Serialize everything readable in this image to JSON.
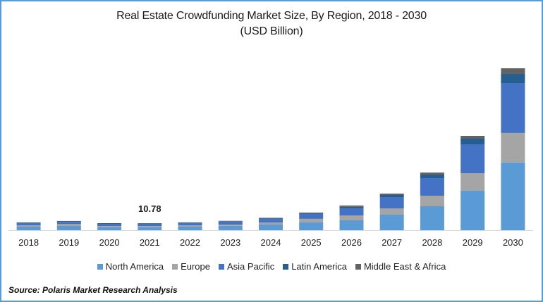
{
  "chart_data": {
    "type": "bar",
    "stacked": true,
    "title": "Real Estate Crowdfunding Market Size, By Region, 2018 - 2030",
    "subtitle": "(USD Billion)",
    "xlabel": "",
    "ylabel": "",
    "grid": false,
    "legend_position": "bottom",
    "categories": [
      "2018",
      "2019",
      "2020",
      "2021",
      "2022",
      "2023",
      "2024",
      "2025",
      "2026",
      "2027",
      "2028",
      "2029",
      "2030"
    ],
    "series": [
      {
        "name": "North America",
        "color": "#5B9BD5",
        "values": [
          5.4,
          6.5,
          4.3,
          4.3,
          5.4,
          6.5,
          8.6,
          11.9,
          15.1,
          23.8,
          36.7,
          60.5,
          103.7
        ]
      },
      {
        "name": "Europe",
        "color": "#A5A5A5",
        "values": [
          2.2,
          3.2,
          2.2,
          2.2,
          2.2,
          2.2,
          3.2,
          5.4,
          7.6,
          9.7,
          16.2,
          27.0,
          45.4
        ]
      },
      {
        "name": "Asia Pacific",
        "color": "#4472C4",
        "values": [
          3.2,
          3.2,
          3.2,
          3.2,
          3.2,
          4.3,
          5.4,
          7.6,
          10.8,
          17.3,
          27.0,
          44.3,
          76.7
        ]
      },
      {
        "name": "Latin America",
        "color": "#255E91",
        "values": [
          0.6,
          0.7,
          0.6,
          0.6,
          0.7,
          0.8,
          1.1,
          1.1,
          2.2,
          3.2,
          5.4,
          8.6,
          14.0
        ]
      },
      {
        "name": "Middle East & Africa",
        "color": "#636363",
        "values": [
          0.5,
          0.6,
          0.5,
          0.48,
          0.5,
          0.6,
          0.7,
          1.1,
          2.2,
          2.2,
          3.2,
          4.3,
          8.6
        ]
      }
    ],
    "annotations": [
      {
        "category": "2021",
        "text": "10.78"
      }
    ],
    "ylim": [
      0,
      250
    ]
  },
  "source": "Source: Polaris  Market Research Analysis"
}
